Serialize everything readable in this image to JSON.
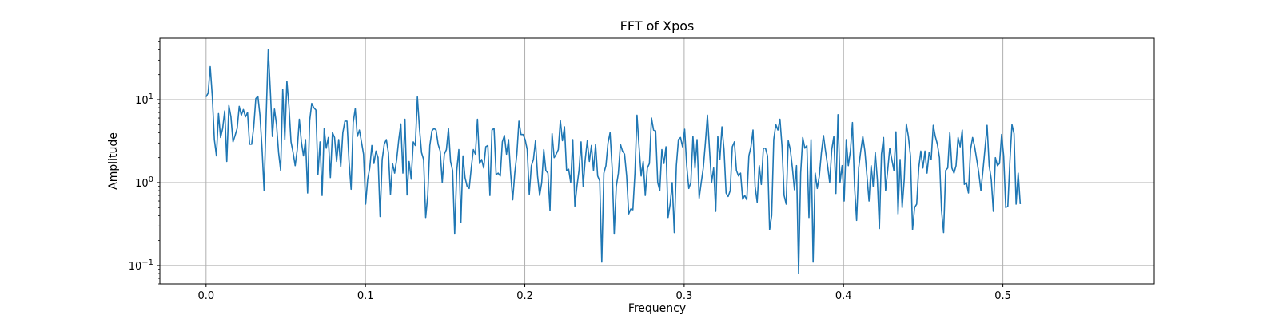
{
  "chart_data": {
    "type": "line",
    "title": "FFT of Xpos",
    "xlabel": "Frequency",
    "ylabel": "Amplitude",
    "yscale": "log",
    "xlim": [
      -0.029,
      0.595
    ],
    "ylim": [
      0.06,
      55
    ],
    "grid": true,
    "color": "#1f77b4",
    "x_ticks": [
      {
        "value": 0.0,
        "label": "0.0"
      },
      {
        "value": 0.1,
        "label": "0.1"
      },
      {
        "value": 0.2,
        "label": "0.2"
      },
      {
        "value": 0.3,
        "label": "0.3"
      },
      {
        "value": 0.4,
        "label": "0.4"
      },
      {
        "value": 0.5,
        "label": "0.5"
      }
    ],
    "y_ticks": [
      {
        "value": 0.1,
        "base": "10",
        "exp": "−1"
      },
      {
        "value": 1,
        "base": "10",
        "exp": "0"
      },
      {
        "value": 10,
        "base": "10",
        "exp": "1"
      }
    ],
    "series": [
      {
        "x_start": 0.0,
        "x_step": 0.0013,
        "values": [
          10.8,
          12.0,
          25.0,
          11.0,
          3.3,
          2.1,
          6.8,
          3.5,
          4.5,
          7.3,
          1.8,
          8.5,
          6.2,
          3.1,
          3.7,
          4.5,
          8.3,
          6.5,
          7.6,
          6.2,
          7.0,
          2.9,
          2.9,
          4.7,
          10.3,
          11.0,
          6.5,
          2.6,
          0.8,
          6.3,
          40.0,
          13.0,
          3.6,
          7.7,
          5.0,
          2.3,
          1.4,
          13.3,
          3.3,
          16.7,
          8.3,
          3.1,
          2.3,
          1.6,
          2.5,
          5.8,
          3.1,
          2.1,
          3.3,
          0.75,
          5.6,
          9.0,
          8.0,
          7.5,
          1.25,
          3.1,
          0.7,
          4.5,
          2.6,
          3.5,
          1.15,
          4.0,
          3.5,
          1.8,
          3.3,
          1.55,
          4.0,
          5.5,
          5.5,
          1.8,
          0.83,
          5.3,
          7.8,
          3.6,
          4.3,
          3.1,
          2.2,
          0.55,
          1.1,
          1.5,
          2.8,
          1.7,
          2.4,
          2.0,
          0.39,
          1.9,
          2.9,
          3.3,
          2.3,
          0.72,
          1.7,
          1.3,
          1.9,
          3.3,
          5.1,
          1.3,
          5.8,
          0.71,
          1.8,
          1.1,
          3.1,
          2.8,
          10.8,
          4.5,
          2.3,
          1.9,
          0.38,
          0.7,
          2.8,
          4.2,
          4.5,
          4.3,
          2.9,
          2.4,
          1.0,
          2.2,
          2.5,
          4.5,
          1.8,
          1.4,
          0.24,
          1.4,
          2.5,
          0.33,
          2.1,
          1.15,
          0.9,
          0.85,
          1.5,
          2.5,
          2.2,
          5.8,
          1.7,
          1.9,
          1.5,
          2.7,
          2.8,
          0.7,
          4.3,
          4.5,
          1.25,
          1.3,
          1.2,
          3.1,
          3.7,
          2.2,
          3.3,
          1.3,
          0.62,
          1.3,
          2.2,
          5.5,
          3.8,
          3.8,
          3.3,
          2.5,
          0.72,
          1.6,
          1.9,
          3.2,
          1.2,
          0.7,
          1.0,
          2.5,
          1.4,
          1.3,
          0.46,
          3.9,
          2.0,
          2.2,
          2.5,
          5.6,
          3.2,
          4.7,
          1.4,
          1.45,
          1.0,
          3.3,
          0.52,
          0.9,
          1.4,
          3.1,
          0.9,
          1.9,
          3.2,
          1.8,
          2.8,
          1.4,
          2.9,
          1.2,
          1.05,
          0.11,
          1.3,
          1.6,
          3.0,
          4.0,
          1.5,
          0.24,
          0.9,
          1.3,
          2.9,
          2.4,
          2.2,
          1.2,
          0.42,
          0.48,
          0.47,
          1.3,
          6.5,
          2.7,
          1.2,
          1.8,
          0.7,
          1.5,
          1.7,
          6.0,
          4.3,
          4.2,
          1.0,
          0.8,
          2.5,
          1.7,
          2.7,
          0.38,
          0.55,
          1.0,
          0.25,
          1.6,
          3.3,
          3.5,
          2.7,
          4.4,
          1.6,
          0.85,
          1.0,
          3.6,
          1.5,
          3.3,
          0.65,
          1.0,
          1.5,
          3.0,
          6.5,
          2.5,
          1.0,
          1.5,
          0.45,
          3.6,
          1.9,
          4.7,
          2.5,
          0.75,
          0.68,
          0.8,
          2.7,
          3.1,
          1.4,
          1.2,
          1.3,
          0.63,
          0.7,
          0.62,
          2.1,
          2.7,
          4.3,
          0.9,
          0.58,
          1.6,
          0.95,
          2.6,
          2.6,
          2.1,
          0.27,
          0.4,
          3.3,
          5.0,
          4.3,
          5.8,
          2.7,
          0.7,
          0.55,
          3.2,
          2.5,
          1.5,
          0.82,
          1.6,
          0.08,
          1.3,
          3.5,
          2.6,
          2.8,
          0.38,
          3.3,
          0.11,
          1.3,
          0.85,
          1.2,
          2.3,
          3.7,
          2.4,
          1.6,
          1.0,
          2.5,
          3.6,
          0.74,
          6.6,
          1.0,
          1.6,
          0.6,
          3.3,
          1.6,
          2.4,
          5.3,
          0.9,
          0.35,
          1.5,
          2.4,
          3.6,
          2.4,
          1.2,
          0.6,
          1.6,
          0.9,
          2.3,
          1.1,
          0.28,
          2.2,
          3.5,
          0.8,
          1.4,
          2.6,
          1.9,
          1.4,
          4.1,
          0.42,
          1.9,
          0.5,
          1.1,
          5.1,
          3.6,
          2.1,
          0.27,
          0.5,
          0.55,
          1.5,
          2.4,
          1.5,
          2.4,
          1.3,
          2.3,
          1.9,
          4.9,
          3.6,
          2.9,
          2.0,
          0.46,
          0.25,
          1.4,
          1.5,
          4.0,
          1.5,
          1.3,
          1.6,
          3.5,
          2.7,
          4.3,
          0.95,
          1.0,
          0.75,
          2.5,
          3.5,
          2.7,
          1.9,
          1.3,
          0.8,
          1.4,
          2.6,
          4.9,
          1.6,
          1.1,
          0.45,
          2.0,
          1.6,
          1.7,
          3.8,
          2.1,
          0.5,
          0.52,
          1.8,
          5.0,
          3.9,
          0.55,
          1.3,
          0.55
        ]
      }
    ]
  }
}
